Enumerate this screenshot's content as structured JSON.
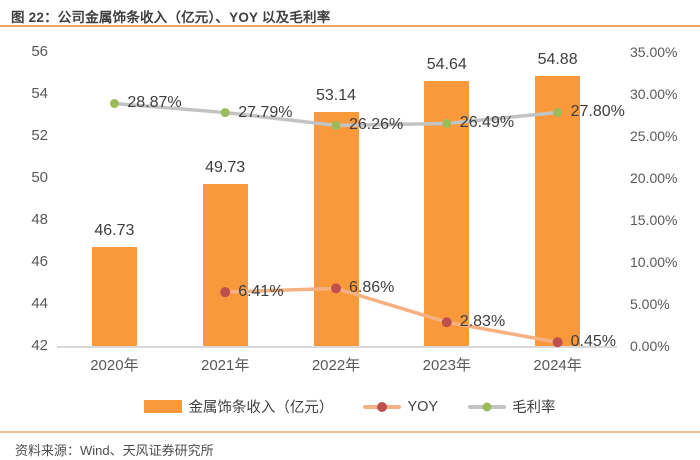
{
  "figure": {
    "title": "图 22：公司金属饰条收入（亿元）、YOY 以及毛利率",
    "source": "资料来源：Wind、天风证券研究所"
  },
  "colors": {
    "header_rule": "#F2A35E",
    "footer_rule": "#F6BE92",
    "axis_text": "#595959",
    "data_label_text": "#3F3F3F",
    "axis_line": "#D9D9D9",
    "background": "#FFFFFF"
  },
  "chart_data": {
    "type": "bar+line combo",
    "title": "公司金属饰条收入（亿元）、YOY 以及毛利率",
    "grid": false,
    "categories": [
      "2020年",
      "2021年",
      "2022年",
      "2023年",
      "2024年"
    ],
    "series": [
      {
        "name": "金属饰条收入（亿元）",
        "type": "bar",
        "axis": "left",
        "color": "#F9993C",
        "values": [
          46.73,
          49.73,
          53.14,
          54.64,
          54.88
        ],
        "labels": [
          "46.73",
          "49.73",
          "53.14",
          "54.64",
          "54.88"
        ]
      },
      {
        "name": "YOY",
        "type": "line",
        "axis": "right",
        "line_color": "#F6B183",
        "marker_color": "#C0504D",
        "values": [
          null,
          6.41,
          6.86,
          2.83,
          0.45
        ],
        "labels": [
          null,
          "6.41%",
          "6.86%",
          "2.83%",
          "0.45%"
        ]
      },
      {
        "name": "毛利率",
        "type": "line",
        "axis": "right",
        "line_color": "#C3C3C3",
        "marker_color": "#9BBB59",
        "values": [
          28.87,
          27.79,
          26.26,
          26.49,
          27.8
        ],
        "labels": [
          "28.87%",
          "27.79%",
          "26.26%",
          "26.49%",
          "27.80%"
        ]
      }
    ],
    "left_axis": {
      "min": 42,
      "max": 56,
      "tick_labels": [
        "56",
        "54",
        "52",
        "50",
        "48",
        "46",
        "44",
        "42"
      ]
    },
    "right_axis": {
      "min": 0,
      "max": 35,
      "tick_labels": [
        "35.00%",
        "30.00%",
        "25.00%",
        "20.00%",
        "15.00%",
        "10.00%",
        "5.00%",
        "0.00%"
      ]
    },
    "legend": {
      "position": "bottom",
      "items": [
        "金属饰条收入（亿元）",
        "YOY",
        "毛利率"
      ]
    }
  }
}
